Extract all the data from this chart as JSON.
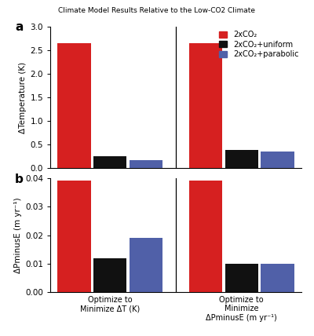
{
  "title": "Climate Model Results Relative to the Low-CO2 Climate",
  "panel_a_label": "a",
  "panel_b_label": "b",
  "groups": [
    "Optimize to\nMinimize ΔT (K)",
    "Optimize to\nMinimize\nΔPminusE (m yr⁻¹)"
  ],
  "series": [
    "2xCO₂",
    "2xCO₂+uniform",
    "2xCO₂+parabolic"
  ],
  "colors": [
    "#d62020",
    "#111111",
    "#5060a8"
  ],
  "panel_a_values": [
    [
      2.65,
      0.25,
      0.16
    ],
    [
      2.65,
      0.38,
      0.35
    ]
  ],
  "panel_b_values": [
    [
      0.039,
      0.012,
      0.019
    ],
    [
      0.039,
      0.01,
      0.01
    ]
  ],
  "panel_a_ylabel": "ΔTemperature (K)",
  "panel_b_ylabel": "ΔPminusE (m yr⁻¹)",
  "panel_a_ylim": [
    0,
    3.0
  ],
  "panel_b_ylim": [
    0.0,
    0.04
  ],
  "panel_a_yticks": [
    0.0,
    0.5,
    1.0,
    1.5,
    2.0,
    2.5,
    3.0
  ],
  "panel_b_yticks": [
    0.0,
    0.01,
    0.02,
    0.03,
    0.04
  ],
  "background_color": "#ffffff"
}
